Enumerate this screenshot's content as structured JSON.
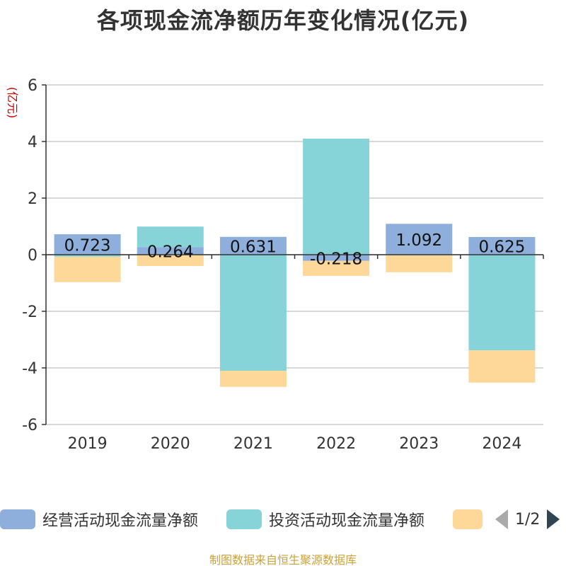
{
  "title": "各项现金流净额历年变化情况(亿元)",
  "source": "制图数据来自恒生聚源数据库",
  "legend_pager": {
    "text": "1/2",
    "prev_icon": "triangle-left-icon",
    "next_icon": "triangle-right-icon"
  },
  "chart_data": {
    "type": "bar",
    "stacked": true,
    "categories": [
      "2019",
      "2020",
      "2021",
      "2022",
      "2023",
      "2024"
    ],
    "ylabel": "(亿元)",
    "ylim": [
      -6,
      6
    ],
    "yticks": [
      6,
      4,
      2,
      0,
      -2,
      -4,
      -6
    ],
    "grid": true,
    "legend_position": "bottom",
    "series": [
      {
        "name": "经营活动现金流量净额",
        "color": "#8eaedc",
        "values": [
          0.723,
          0.264,
          0.631,
          -0.218,
          1.092,
          0.625
        ],
        "labels": [
          "0.723",
          "0.264",
          "0.631",
          "-0.218",
          "1.092",
          "0.625"
        ]
      },
      {
        "name": "投资活动现金流量净额",
        "color": "#86d4d8",
        "values": [
          -0.07,
          0.73,
          -4.1,
          4.1,
          -0.02,
          -3.38
        ]
      },
      {
        "name": "",
        "color": "#fdd898",
        "values": [
          -0.9,
          -0.4,
          -0.57,
          -0.53,
          -0.6,
          -1.14
        ]
      }
    ]
  }
}
